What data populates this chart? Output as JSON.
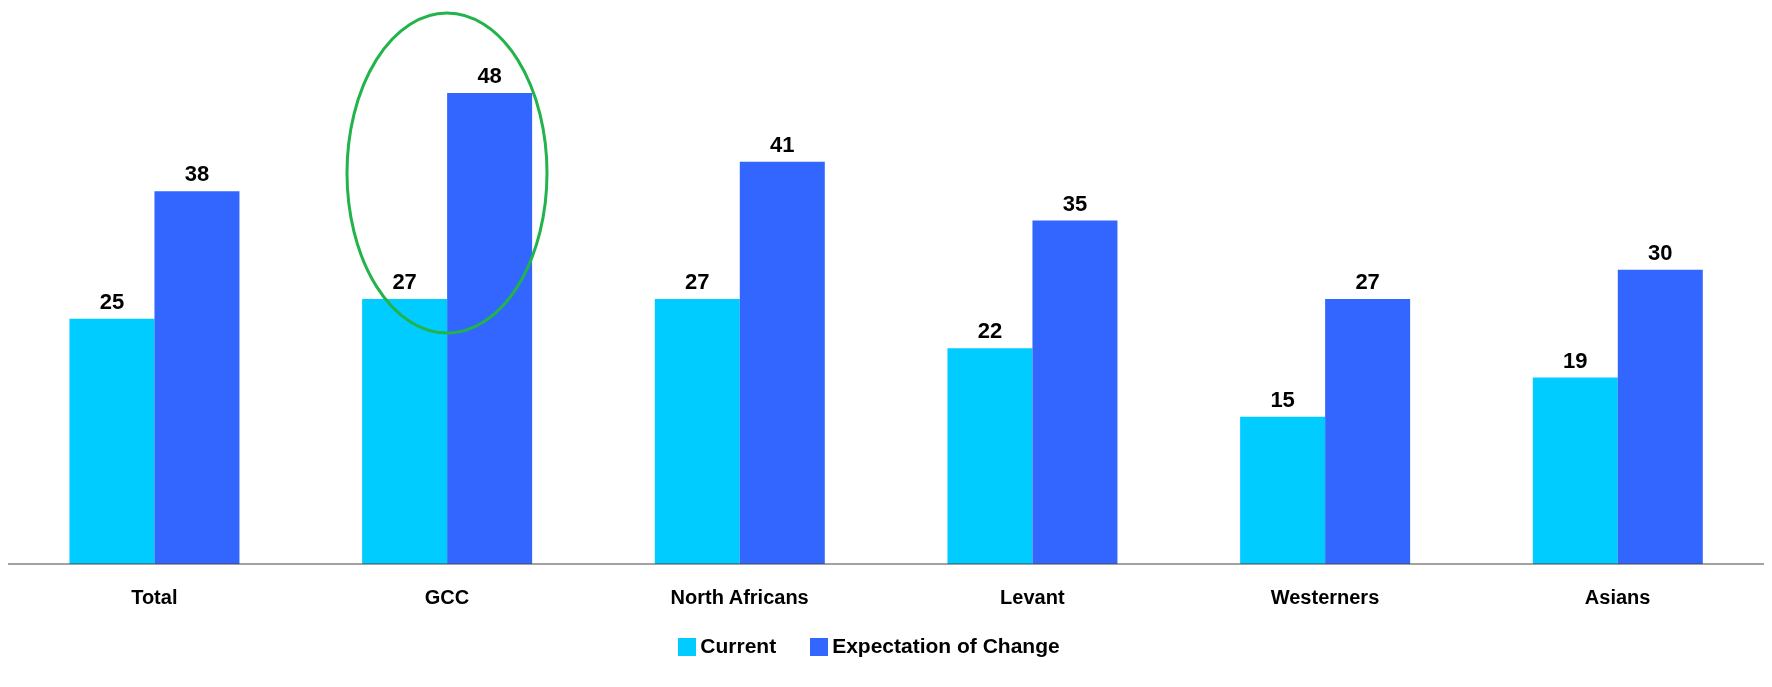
{
  "chart_data": {
    "type": "bar",
    "categories": [
      "Total",
      "GCC",
      "North Africans",
      "Levant",
      "Westerners",
      "Asians"
    ],
    "series": [
      {
        "name": "Current",
        "color": "#00ccff",
        "values": [
          25,
          27,
          27,
          22,
          15,
          19
        ]
      },
      {
        "name": "Expectation of Change",
        "color": "#3366ff",
        "values": [
          38,
          48,
          41,
          35,
          27,
          30
        ]
      }
    ],
    "data_labels": true,
    "grid": false,
    "legend": "bottom"
  }
}
